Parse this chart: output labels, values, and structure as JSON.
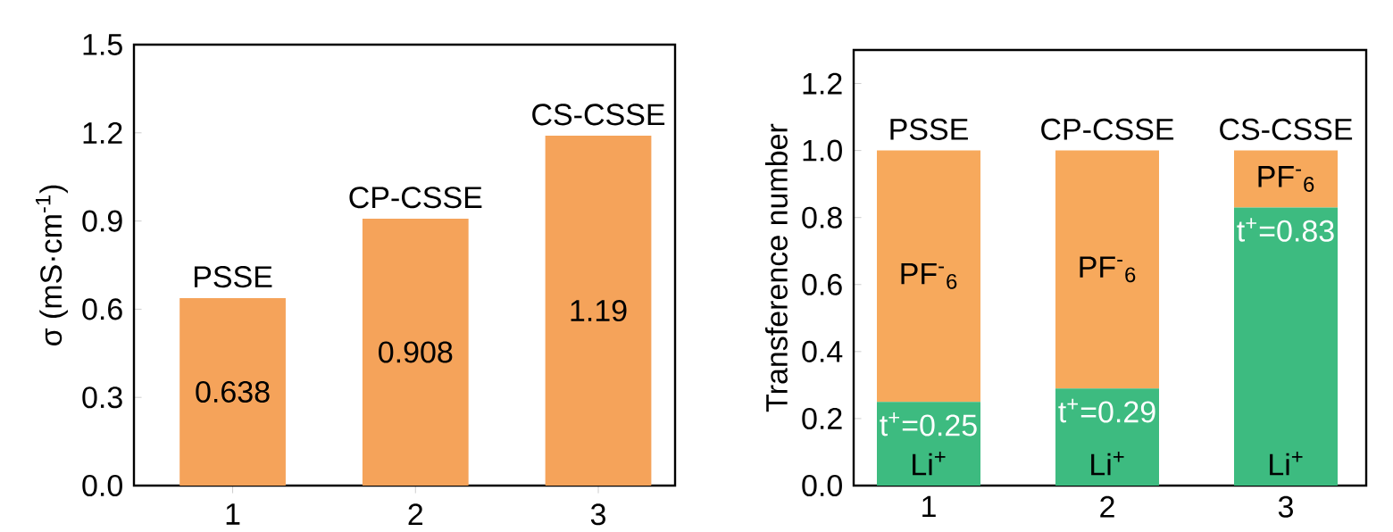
{
  "chart_data": [
    {
      "type": "bar",
      "ylabel": "σ (mS·cm$^{-1}$)",
      "categories": [
        "1",
        "2",
        "3"
      ],
      "values": [
        0.638,
        0.908,
        1.19
      ],
      "color": "#f5a35a",
      "data_labels": true,
      "ylim": [
        0,
        1.5
      ],
      "yticks": [
        {
          "value": 0,
          "label": "0.0"
        },
        {
          "value": 0.3,
          "label": "0.3"
        },
        {
          "value": 0.6,
          "label": "0.6"
        },
        {
          "value": 0.9,
          "label": "0.9"
        },
        {
          "value": 1.2,
          "label": "1.2"
        },
        {
          "value": 1.5,
          "label": "1.5"
        }
      ],
      "annotations": [
        {
          "text": "PSSE",
          "x": "1",
          "y": 0.638
        },
        {
          "text": "CP-CSSE",
          "x": "2",
          "y": 0.908
        },
        {
          "text": "CS-CSSE",
          "x": "3",
          "y": 1.19
        }
      ]
    },
    {
      "type": "bar",
      "stacked": true,
      "ylabel": "Transference number",
      "categories": [
        "1",
        "2",
        "3"
      ],
      "series": [
        {
          "name": "Li$^{+}$",
          "color": "#3dbb80",
          "values": [
            0.25,
            0.29,
            0.83
          ],
          "value_labels": [
            "t$^{+}$=0.25",
            "t$^{+}$=0.29",
            "t$^{+}$=0.83"
          ]
        },
        {
          "name": "PF$^{-}$$_{6}$",
          "color": "#f7a95c",
          "values": [
            0.75,
            0.71,
            0.17
          ]
        }
      ],
      "ylim": [
        0,
        1.3
      ],
      "yticks": [
        {
          "value": 0,
          "label": "0.0"
        },
        {
          "value": 0.2,
          "label": "0.2"
        },
        {
          "value": 0.4,
          "label": "0.4"
        },
        {
          "value": 0.6,
          "label": "0.6"
        },
        {
          "value": 0.8,
          "label": "0.8"
        },
        {
          "value": 1.0,
          "label": "1.0"
        },
        {
          "value": 1.2,
          "label": "1.2"
        }
      ],
      "annotations": [
        {
          "text": "PSSE",
          "x": "1",
          "y": 1.0
        },
        {
          "text": "CP-CSSE",
          "x": "2",
          "y": 1.0
        },
        {
          "text": "CS-CSSE",
          "x": "3",
          "y": 1.0
        }
      ]
    }
  ]
}
